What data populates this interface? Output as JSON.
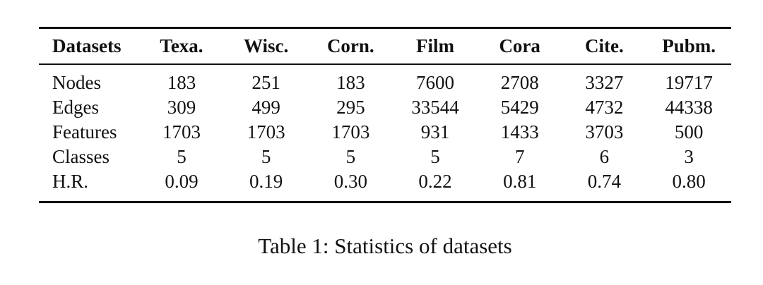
{
  "page": {
    "background_color": "#ffffff",
    "text_color": "#111111",
    "rule_color": "#111111"
  },
  "table": {
    "caption": "Table 1: Statistics of datasets",
    "columns": [
      "Datasets",
      "Texa.",
      "Wisc.",
      "Corn.",
      "Film",
      "Cora",
      "Cite.",
      "Pubm."
    ],
    "rows": [
      {
        "label": "Nodes",
        "values": [
          "183",
          "251",
          "183",
          "7600",
          "2708",
          "3327",
          "19717"
        ]
      },
      {
        "label": "Edges",
        "values": [
          "309",
          "499",
          "295",
          "33544",
          "5429",
          "4732",
          "44338"
        ]
      },
      {
        "label": "Features",
        "values": [
          "1703",
          "1703",
          "1703",
          "931",
          "1433",
          "3703",
          "500"
        ]
      },
      {
        "label": "Classes",
        "values": [
          "5",
          "5",
          "5",
          "5",
          "7",
          "6",
          "3"
        ]
      },
      {
        "label": "H.R.",
        "values": [
          "0.09",
          "0.19",
          "0.30",
          "0.22",
          "0.81",
          "0.74",
          "0.80"
        ]
      }
    ]
  }
}
